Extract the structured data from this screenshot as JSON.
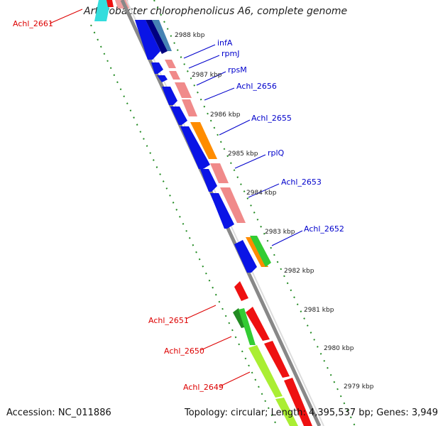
{
  "title": "Arthrobacter chlorophenolicus A6, complete genome",
  "accession": "Accession: NC_011886",
  "topology": "Topology: circular; Length: 4,395,537 bp; Genes: 3,949",
  "colors": {
    "backbone": "#888888",
    "ticks": "#228B22",
    "forward_label": "#0000cc",
    "reverse_label": "#dd0000",
    "blue_gene": "#0a14e6",
    "pink_gene": "#f08a8a",
    "orange_gene": "#ff8c00",
    "green_gene": "#33cc33",
    "red_gene": "#ee1111",
    "lime_gene": "#aaee33"
  },
  "kbp_ticks": [
    "2988 kbp",
    "2987 kbp",
    "2986 kbp",
    "2985 kbp",
    "2984 kbp",
    "2983 kbp",
    "2982 kbp",
    "2981 kbp",
    "2980 kbp",
    "2979 kbp"
  ],
  "forward_labels": [
    "infA",
    "rpmJ",
    "rpsM",
    "Achl_2656",
    "Achl_2655",
    "rplQ",
    "Achl_2653",
    "Achl_2652"
  ],
  "reverse_labels": [
    "Achl_2661",
    "Achl_2651",
    "Achl_2650",
    "Achl_2649"
  ]
}
